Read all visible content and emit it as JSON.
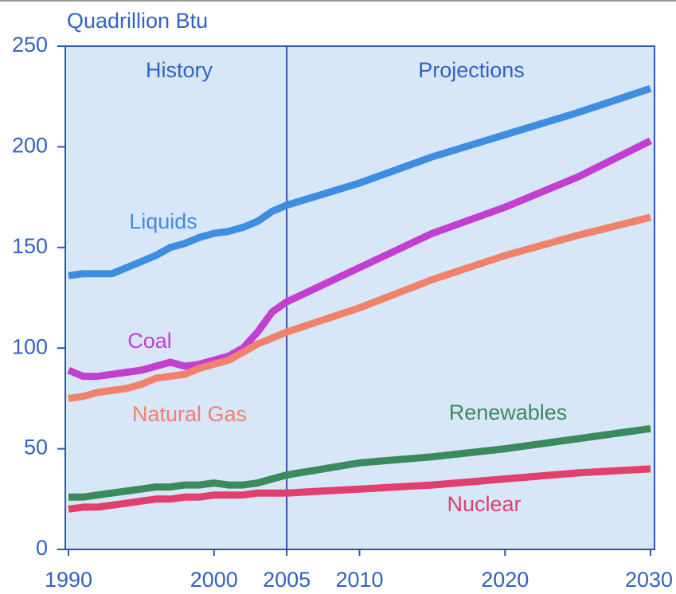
{
  "chart_data": {
    "type": "line",
    "y_label": "Quadrillion Btu",
    "annotations": [
      "History",
      "Projections"
    ],
    "divider": 2005,
    "x": [
      1990,
      1991,
      1992,
      1993,
      1994,
      1995,
      1996,
      1997,
      1998,
      1999,
      2000,
      2001,
      2002,
      2003,
      2004,
      2005,
      2010,
      2015,
      2020,
      2025,
      2030
    ],
    "series": [
      {
        "name": "Liquids",
        "color": "#3f8de0",
        "values": [
          136,
          137,
          137,
          137,
          140,
          143,
          146,
          150,
          152,
          155,
          157,
          158,
          160,
          163,
          168,
          171,
          182,
          195,
          206,
          217,
          229
        ]
      },
      {
        "name": "Coal",
        "color": "#c23fd2",
        "values": [
          89,
          86,
          86,
          87,
          88,
          89,
          91,
          93,
          91,
          92,
          94,
          96,
          100,
          108,
          118,
          123,
          140,
          157,
          170,
          185,
          203
        ]
      },
      {
        "name": "Natural Gas",
        "color": "#f0826c",
        "values": [
          75,
          76,
          78,
          79,
          80,
          82,
          85,
          86,
          87,
          90,
          92,
          94,
          98,
          102,
          105,
          108,
          120,
          134,
          146,
          156,
          165
        ]
      },
      {
        "name": "Renewables",
        "color": "#3b8a5c",
        "values": [
          26,
          26,
          27,
          28,
          29,
          30,
          31,
          31,
          32,
          32,
          33,
          32,
          32,
          33,
          35,
          37,
          43,
          46,
          50,
          55,
          60
        ]
      },
      {
        "name": "Nuclear",
        "color": "#e2406c",
        "values": [
          20,
          21,
          21,
          22,
          23,
          24,
          25,
          25,
          26,
          26,
          27,
          27,
          27,
          28,
          28,
          28,
          30,
          32,
          35,
          38,
          40
        ]
      }
    ],
    "xlim": [
      1990,
      2030
    ],
    "ylim": [
      0,
      250
    ],
    "xticks": [
      1990,
      2000,
      2005,
      2010,
      2020,
      2030
    ],
    "yticks": [
      0,
      50,
      100,
      150,
      200,
      250
    ]
  }
}
